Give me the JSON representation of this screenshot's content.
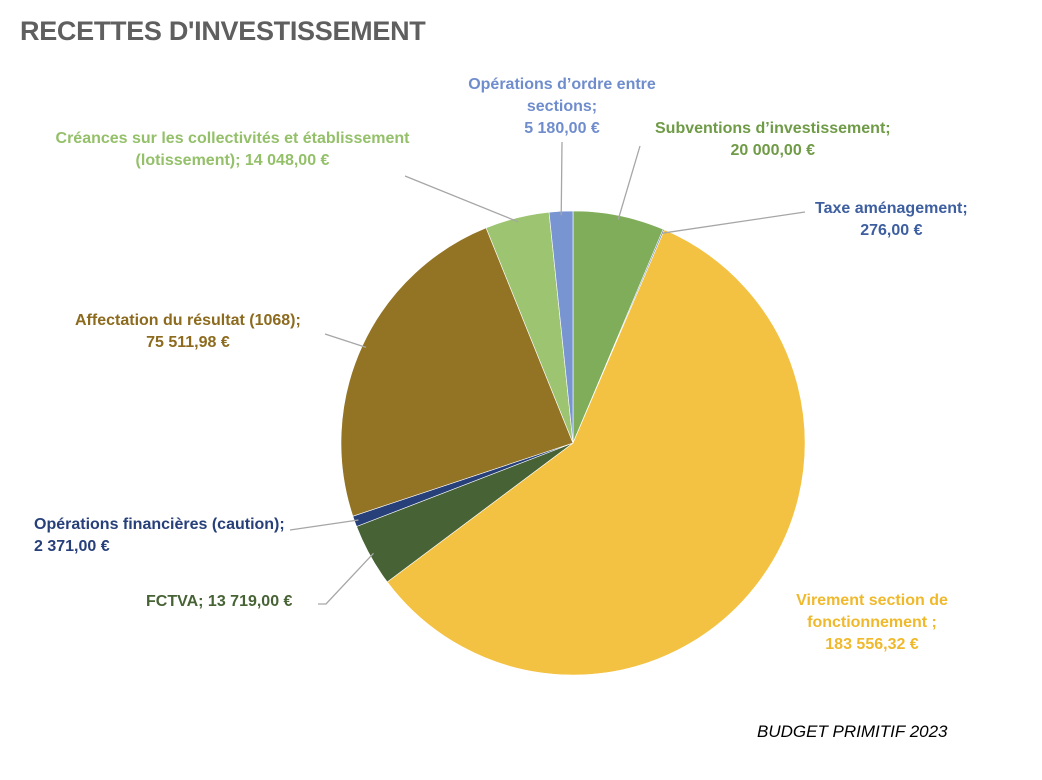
{
  "chart_data": {
    "type": "pie",
    "title": "RECETTES D'INVESTISSEMENT",
    "footnote": "BUDGET PRIMITIF 2023",
    "slices": [
      {
        "label": "Subventions d’investissement;",
        "value_text": "20 000,00  €",
        "value": 20000.0,
        "color": "#80ad59"
      },
      {
        "label": "Taxe aménagement;",
        "value_text": "276,00  €",
        "value": 276.0,
        "color": "#4a6aa8"
      },
      {
        "label": "Virement section de fonctionnement   ;",
        "value_text": "183 556,32  €",
        "value": 183556.32,
        "color": "#f4c242"
      },
      {
        "label": "FCTVA;",
        "value_text": "13 719,00  €",
        "value": 13719.0,
        "color": "#476335"
      },
      {
        "label": "Opérations financières (caution);",
        "value_text": "2 371,00  €",
        "value": 2371.0,
        "color": "#27407a"
      },
      {
        "label": "Affectation du résultat (1068);",
        "value_text": "75 511,98  €",
        "value": 75511.98,
        "color": "#937324"
      },
      {
        "label": "Créances sur les collectivités et établissement (lotissement);",
        "value_text": "14 048,00  €",
        "value": 14048.0,
        "color": "#9cc471"
      },
      {
        "label": "Opérations d’ordre entre sections;",
        "value_text": "5 180,00  €",
        "value": 5180.0,
        "color": "#7895d2"
      }
    ]
  }
}
